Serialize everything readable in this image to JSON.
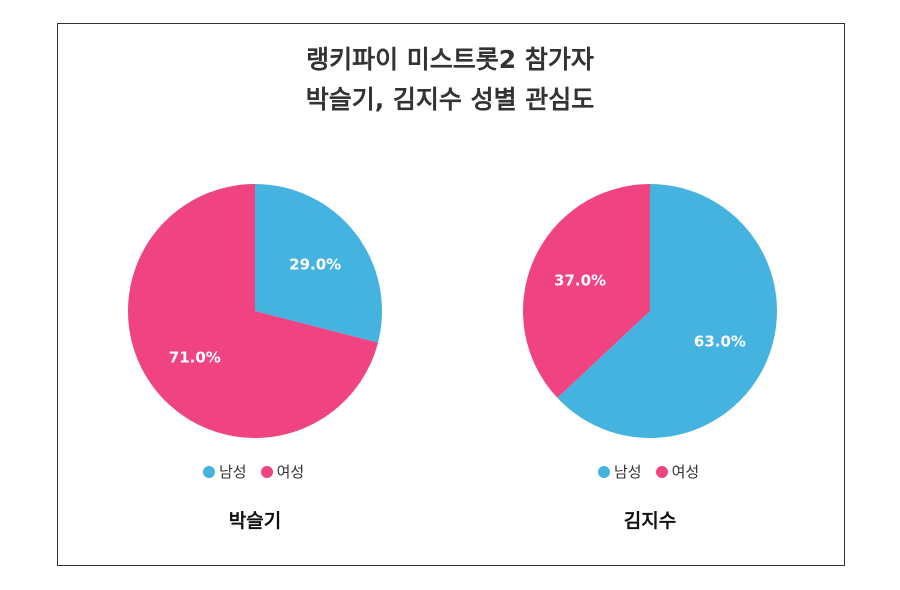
{
  "title": {
    "line1": "랭키파이 미스트롯2 참가자",
    "line2": "박슬기, 김지수 성별 관심도"
  },
  "colors": {
    "male": "#45B3E0",
    "female": "#EF4481"
  },
  "legend": {
    "male": "남성",
    "female": "여성"
  },
  "chart_data": [
    {
      "type": "pie",
      "name": "박슬기",
      "categories": [
        "남성",
        "여성"
      ],
      "values": [
        29.0,
        71.0
      ],
      "labels": [
        "29.0%",
        "71.0%"
      ],
      "colors": [
        "#45B3E0",
        "#EF4481"
      ],
      "legend": "bottom"
    },
    {
      "type": "pie",
      "name": "김지수",
      "categories": [
        "남성",
        "여성"
      ],
      "values": [
        63.0,
        37.0
      ],
      "labels": [
        "63.0%",
        "37.0%"
      ],
      "colors": [
        "#45B3E0",
        "#EF4481"
      ],
      "legend": "bottom"
    }
  ]
}
